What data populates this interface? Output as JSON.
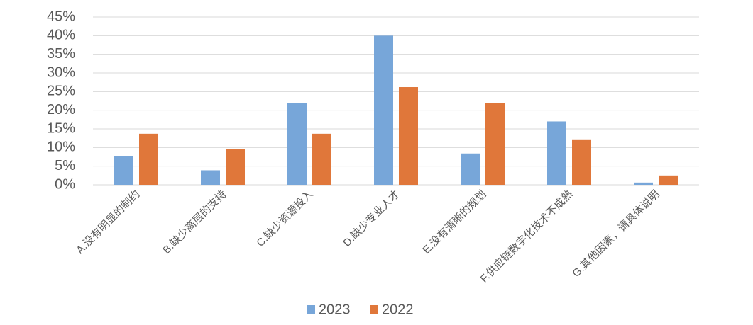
{
  "chart_data": {
    "type": "bar",
    "categories": [
      "A.没有明显的制约",
      "B.缺少高层的支持",
      "C.缺少资源投入",
      "D.缺少专业人才",
      "E.没有清晰的规划",
      "F.供应链数字化技术不成熟",
      "G.其他因素，请具体说明"
    ],
    "series": [
      {
        "name": "2023",
        "color": "#77a6d9",
        "values": [
          7.7,
          3.9,
          22,
          40,
          8.4,
          17,
          0.6
        ]
      },
      {
        "name": "2022",
        "color": "#e0773a",
        "values": [
          13.7,
          9.5,
          13.7,
          26.2,
          22,
          12,
          2.5
        ]
      }
    ],
    "ylim": [
      0,
      45
    ],
    "yticks": [
      {
        "value": 0,
        "label": "0%"
      },
      {
        "value": 5,
        "label": "5%"
      },
      {
        "value": 10,
        "label": "10%"
      },
      {
        "value": 15,
        "label": "15%"
      },
      {
        "value": 20,
        "label": "20%"
      },
      {
        "value": 25,
        "label": "25%"
      },
      {
        "value": 30,
        "label": "30%"
      },
      {
        "value": 35,
        "label": "35%"
      },
      {
        "value": 40,
        "label": "40%"
      },
      {
        "value": 45,
        "label": "45%"
      }
    ],
    "grid": true,
    "legend": "bottom"
  }
}
